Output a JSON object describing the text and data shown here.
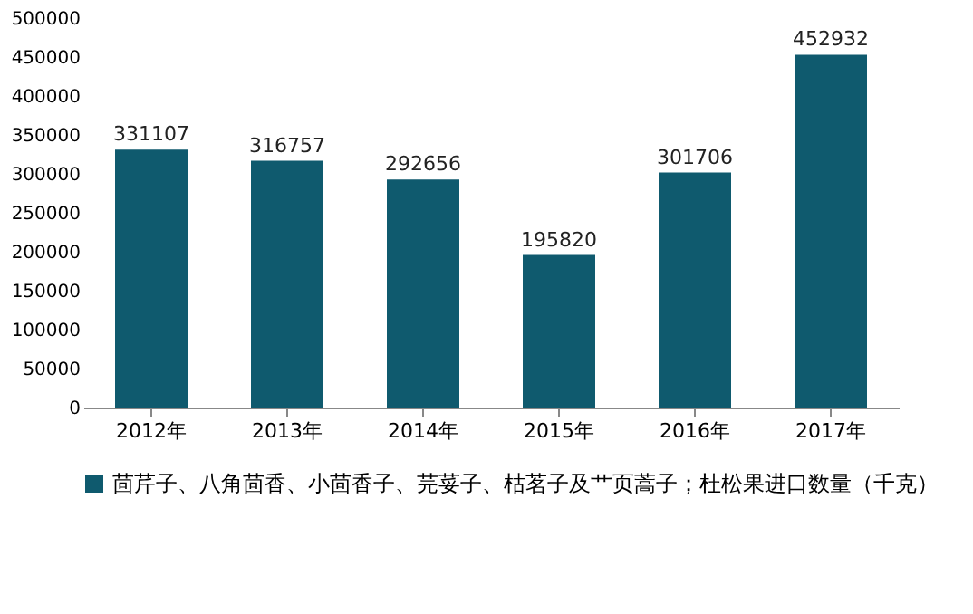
{
  "chart_data": {
    "type": "bar",
    "categories": [
      "2012年",
      "2013年",
      "2014年",
      "2015年",
      "2016年",
      "2017年"
    ],
    "series": [
      {
        "name": "茴芹子、八角茴香、小茴香子、芫荽子、枯茗子及艹页蒿子；杜松果进口数量（千克）",
        "color": "#0f5a6e",
        "values": [
          331107,
          316757,
          292656,
          195820,
          301706,
          452932
        ]
      }
    ],
    "ylim": [
      0,
      500000
    ],
    "yticks": [
      0,
      50000,
      100000,
      150000,
      200000,
      250000,
      300000,
      350000,
      400000,
      450000,
      500000
    ],
    "data_labels": true,
    "grid": false,
    "legend": "bottom"
  }
}
